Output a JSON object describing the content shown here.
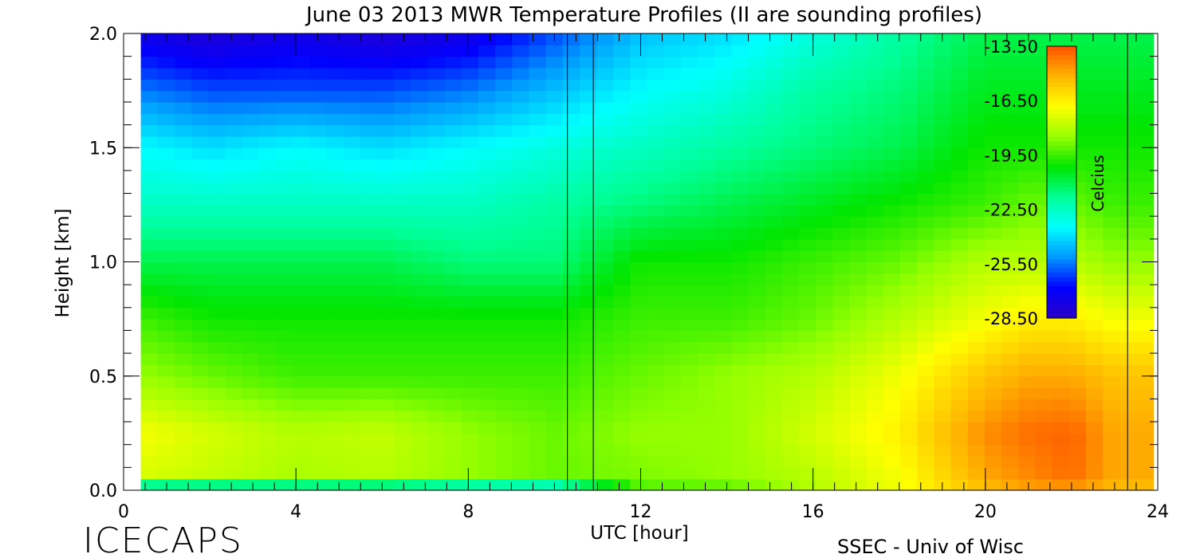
{
  "chart_data": {
    "type": "heatmap",
    "title": "June 03 2013 MWR Temperature Profiles (II are sounding profiles)",
    "xlabel": "UTC [hour]",
    "ylabel": "Height [km]",
    "xlim": [
      0,
      24
    ],
    "ylim": [
      0,
      2.0
    ],
    "x_ticks": [
      "0",
      "4",
      "8",
      "12",
      "16",
      "20",
      "24"
    ],
    "y_ticks": [
      "0.0",
      "0.5",
      "1.0",
      "1.5",
      "2.0"
    ],
    "colorbar": {
      "label": "Celcius",
      "range": [
        -28.5,
        -13.5
      ],
      "ticks": [
        "-13.50",
        "-16.50",
        "-19.50",
        "-22.50",
        "-25.50",
        "-28.50"
      ],
      "colors": [
        "#2a00c8",
        "#0000ff",
        "#0096ff",
        "#00ffff",
        "#00ff96",
        "#00e600",
        "#96ff00",
        "#ffff00",
        "#ffb400",
        "#ff5000"
      ]
    },
    "data_coverage_x": [
      0.4,
      23.9
    ],
    "sounding_times": [
      10.3,
      10.9,
      23.3
    ],
    "heights_km": [
      0.0,
      0.05,
      0.25,
      0.5,
      0.75,
      1.0,
      1.25,
      1.5,
      1.75,
      2.0
    ],
    "times_hr": [
      0.5,
      2,
      4,
      6,
      8,
      10,
      12,
      14,
      16,
      18,
      20,
      21,
      22,
      23
    ],
    "temperature_c": [
      [
        -26.0,
        -25.5,
        -25.0,
        -25.0,
        -25.5,
        -25.5,
        -19.5,
        -19.5,
        -18.0,
        -17.0,
        -15.5,
        -15.0,
        -15.0,
        -15.5
      ],
      [
        -17.5,
        -17.8,
        -18.2,
        -18.0,
        -18.5,
        -19.0,
        -18.8,
        -18.5,
        -18.0,
        -17.0,
        -15.0,
        -14.5,
        -14.0,
        -15.0
      ],
      [
        -17.0,
        -17.5,
        -18.0,
        -17.8,
        -18.5,
        -19.0,
        -18.5,
        -18.5,
        -17.5,
        -16.5,
        -14.5,
        -14.0,
        -13.8,
        -15.0
      ],
      [
        -18.5,
        -19.0,
        -19.5,
        -19.5,
        -19.5,
        -19.5,
        -19.0,
        -18.5,
        -18.0,
        -17.0,
        -15.5,
        -15.0,
        -15.0,
        -15.5
      ],
      [
        -19.5,
        -20.0,
        -20.0,
        -20.0,
        -20.0,
        -20.0,
        -19.5,
        -19.5,
        -19.0,
        -18.0,
        -17.0,
        -16.5,
        -16.5,
        -17.0
      ],
      [
        -21.0,
        -21.0,
        -21.0,
        -21.0,
        -21.5,
        -21.5,
        -20.0,
        -20.0,
        -19.5,
        -19.0,
        -18.0,
        -18.0,
        -18.0,
        -18.5
      ],
      [
        -22.5,
        -22.5,
        -22.5,
        -22.5,
        -22.5,
        -22.0,
        -21.5,
        -21.0,
        -20.5,
        -20.0,
        -19.5,
        -19.0,
        -19.0,
        -19.5
      ],
      [
        -23.5,
        -24.0,
        -23.5,
        -24.0,
        -23.5,
        -23.0,
        -22.5,
        -22.0,
        -21.5,
        -21.0,
        -20.0,
        -20.0,
        -20.0,
        -20.0
      ],
      [
        -25.5,
        -26.0,
        -26.0,
        -26.0,
        -25.5,
        -24.5,
        -23.5,
        -23.0,
        -22.0,
        -21.5,
        -20.5,
        -20.5,
        -20.5,
        -20.5
      ],
      [
        -27.5,
        -28.0,
        -27.5,
        -28.0,
        -27.5,
        -26.0,
        -24.5,
        -24.0,
        -23.0,
        -22.0,
        -21.0,
        -21.0,
        -21.0,
        -21.0
      ]
    ]
  },
  "footer": {
    "left": "ICECAPS",
    "right": "SSEC - Univ of Wisc"
  }
}
